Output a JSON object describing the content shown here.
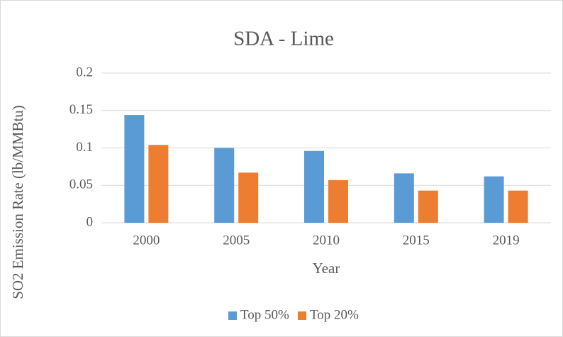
{
  "chart_data": {
    "type": "bar",
    "title": "SDA - Lime",
    "x_label": "Year",
    "y_label": "SO2 Emission Rate (lb/MMBtu)",
    "categories": [
      "2000",
      "2005",
      "2010",
      "2015",
      "2019"
    ],
    "series": [
      {
        "name": "Top 50%",
        "color": "#5b9bd5",
        "values": [
          0.144,
          0.1,
          0.096,
          0.066,
          0.062
        ]
      },
      {
        "name": "Top 20%",
        "color": "#ed7d31",
        "values": [
          0.104,
          0.067,
          0.057,
          0.043,
          0.043
        ]
      }
    ],
    "ylim": [
      0,
      0.2
    ],
    "yticks": [
      0,
      0.05,
      0.1,
      0.15,
      0.2
    ],
    "grid": true,
    "legend": "bottom"
  }
}
